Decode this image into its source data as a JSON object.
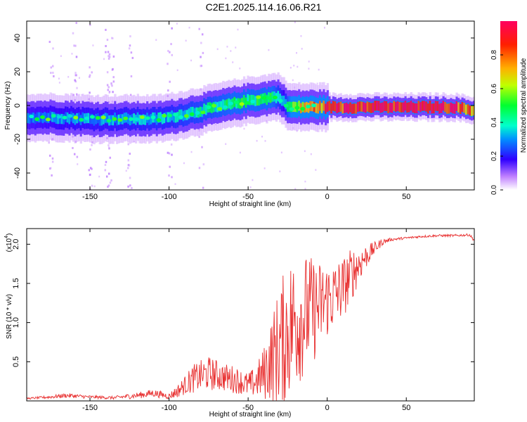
{
  "title": "C2E1.2025.114.16.06.R21",
  "chart_data": [
    {
      "type": "heatmap",
      "name": "spectrogram",
      "xlabel": "Height of straight line (km)",
      "ylabel": "Frequency (Hz)",
      "xlim": [
        -190,
        93
      ],
      "ylim": [
        -50,
        50
      ],
      "xticks": [
        -150,
        -100,
        -50,
        0,
        50
      ],
      "yticks": [
        -40,
        -20,
        0,
        20,
        40
      ],
      "colorbar": {
        "label": "Normalized spectral amplitude",
        "range": [
          0,
          1
        ],
        "ticks": [
          0.0,
          0.2,
          0.4,
          0.6,
          0.8
        ],
        "colors": [
          "#ffffff",
          "#c080ff",
          "#3000ff",
          "#0090ff",
          "#00ffcc",
          "#00ff30",
          "#c0ff00",
          "#ffb000",
          "#ff2000",
          "#ff0060"
        ]
      },
      "ridge": {
        "height_km": [
          -190,
          -170,
          -150,
          -130,
          -110,
          -100,
          -90,
          -80,
          -70,
          -60,
          -50,
          -40,
          -35,
          -30,
          -28,
          -25,
          -20,
          -10,
          0,
          20,
          40,
          60,
          80,
          93
        ],
        "frequency_hz": [
          -7,
          -7,
          -8,
          -8,
          -8,
          -7,
          -5,
          -3,
          -1,
          1,
          3,
          4,
          5,
          5,
          2,
          -1,
          -1,
          -1,
          -1,
          -1,
          -1,
          -1,
          -1,
          -3
        ],
        "amplitude": [
          0.28,
          0.3,
          0.32,
          0.33,
          0.35,
          0.35,
          0.38,
          0.4,
          0.42,
          0.45,
          0.45,
          0.45,
          0.45,
          0.35,
          0.3,
          0.45,
          0.6,
          0.75,
          0.85,
          0.95,
          0.97,
          0.98,
          0.95,
          0.7
        ]
      },
      "scattered_noise_columns_km": [
        -175,
        -160,
        -150,
        -140,
        -137,
        -125,
        -100,
        -80
      ]
    },
    {
      "type": "line",
      "name": "snr",
      "xlabel": "Height of straight line (km)",
      "ylabel": "SNR (10 * v/v)",
      "scale_label": "(x10",
      "scale_exponent": "4",
      "xlim": [
        -190,
        93
      ],
      "ylim": [
        0,
        2.2
      ],
      "xticks": [
        -150,
        -100,
        -50,
        0,
        50
      ],
      "yticks": [
        0.5,
        1.0,
        1.5,
        2.0
      ],
      "series": [
        {
          "name": "SNR",
          "color": "#e83030",
          "x": [
            -190,
            -175,
            -165,
            -150,
            -135,
            -120,
            -110,
            -100,
            -95,
            -90,
            -85,
            -80,
            -75,
            -70,
            -65,
            -60,
            -55,
            -50,
            -45,
            -40,
            -35,
            -30,
            -25,
            -20,
            -15,
            -10,
            -5,
            0,
            5,
            10,
            15,
            20,
            25,
            30,
            35,
            40,
            50,
            60,
            70,
            80,
            90,
            93
          ],
          "y": [
            0.03,
            0.05,
            0.07,
            0.05,
            0.04,
            0.07,
            0.1,
            0.06,
            0.12,
            0.2,
            0.28,
            0.32,
            0.35,
            0.33,
            0.3,
            0.28,
            0.25,
            0.2,
            0.25,
            0.35,
            0.55,
            0.7,
            0.9,
            1.05,
            1.1,
            1.15,
            1.2,
            1.3,
            1.35,
            1.45,
            1.6,
            1.75,
            1.85,
            1.95,
            2.03,
            2.06,
            2.08,
            2.1,
            2.11,
            2.11,
            2.12,
            2.05
          ],
          "spread": [
            0.01,
            0.02,
            0.03,
            0.02,
            0.02,
            0.04,
            0.05,
            0.04,
            0.08,
            0.12,
            0.18,
            0.2,
            0.22,
            0.2,
            0.18,
            0.18,
            0.16,
            0.16,
            0.2,
            0.35,
            0.55,
            0.8,
            0.9,
            0.9,
            0.8,
            0.7,
            0.6,
            0.5,
            0.45,
            0.4,
            0.35,
            0.25,
            0.15,
            0.08,
            0.04,
            0.02,
            0.015,
            0.015,
            0.015,
            0.015,
            0.015,
            0.02
          ]
        }
      ]
    }
  ]
}
